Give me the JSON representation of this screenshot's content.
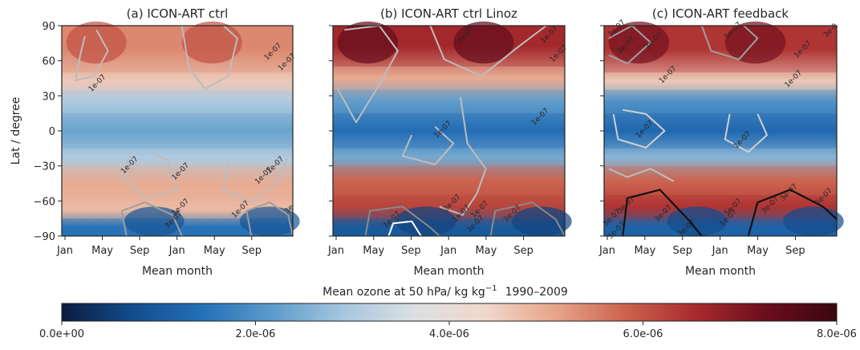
{
  "figure": {
    "colorbar": {
      "label": "Mean ozone at 50 hPa/ kg kg",
      "label_exponent": "−1",
      "label_period": "1990–2009",
      "ticks": [
        "0.0e+00",
        "2.0e-06",
        "4.0e-06",
        "6.0e-06",
        "8.0e-06"
      ],
      "range": [
        0.0,
        8e-06
      ],
      "colormap": [
        "#0b1b3f",
        "#134c8c",
        "#2470b8",
        "#5e9ccb",
        "#a7c7de",
        "#dcdfe3",
        "#f0d9cc",
        "#e7a58a",
        "#cc634e",
        "#a82a2d",
        "#6b0d1c",
        "#3a0610"
      ]
    }
  },
  "chart_data": [
    {
      "type": "heatmap",
      "title": "(a) ICON-ART ctrl",
      "xlabel": "Mean month",
      "ylabel": "Lat / degree",
      "x_ticks": [
        "Jan",
        "May",
        "Sep",
        "Jan",
        "May",
        "Sep"
      ],
      "y_ticks": [
        "90",
        "60",
        "30",
        "0",
        "−30",
        "−60",
        "−90"
      ],
      "ylim": [
        -90,
        90
      ],
      "bands": [
        {
          "lat_from": 90,
          "lat_to": 50,
          "value": 5.4e-06
        },
        {
          "lat_from": 50,
          "lat_to": 35,
          "value": 4.6e-06
        },
        {
          "lat_from": 35,
          "lat_to": 15,
          "value": 3e-06
        },
        {
          "lat_from": 15,
          "lat_to": -15,
          "value": 2.3e-06
        },
        {
          "lat_from": -15,
          "lat_to": -30,
          "value": 3e-06
        },
        {
          "lat_from": -30,
          "lat_to": -60,
          "value": 5e-06
        },
        {
          "lat_from": -60,
          "lat_to": -75,
          "value": 4.8e-06
        },
        {
          "lat_from": -75,
          "lat_to": -90,
          "value": 1.5e-06
        }
      ],
      "contour_labels": [
        "1e-07",
        "1e-07",
        "1e-07",
        "1e-07",
        "1e-07",
        "1e-07",
        "1e-07",
        "1e-07",
        "3e-07",
        "1e-07",
        "3e"
      ]
    },
    {
      "type": "heatmap",
      "title": "(b) ICON-ART ctrl Linoz",
      "xlabel": "Mean month",
      "ylabel": "",
      "x_ticks": [
        "Jan",
        "May",
        "Sep",
        "Jan",
        "May",
        "Sep"
      ],
      "y_ticks": [],
      "ylim": [
        -90,
        90
      ],
      "bands": [
        {
          "lat_from": 90,
          "lat_to": 55,
          "value": 6.6e-06
        },
        {
          "lat_from": 55,
          "lat_to": 35,
          "value": 5e-06
        },
        {
          "lat_from": 35,
          "lat_to": 15,
          "value": 2.2e-06
        },
        {
          "lat_from": 15,
          "lat_to": -15,
          "value": 1.4e-06
        },
        {
          "lat_from": -15,
          "lat_to": -30,
          "value": 2.4e-06
        },
        {
          "lat_from": -30,
          "lat_to": -55,
          "value": 5.8e-06
        },
        {
          "lat_from": -55,
          "lat_to": -75,
          "value": 6.2e-06
        },
        {
          "lat_from": -75,
          "lat_to": -90,
          "value": 1e-06
        }
      ],
      "contour_labels": [
        "3e-07",
        "1e-07",
        "1e-07",
        "1e-07",
        "1e-07",
        "3e-07",
        "1e-07",
        "3e-07",
        "3e-07",
        "1e-07",
        "3e-07"
      ]
    },
    {
      "type": "heatmap",
      "title": "(c) ICON-ART feedback",
      "xlabel": "Mean month",
      "ylabel": "",
      "x_ticks": [
        "Jan",
        "May",
        "Sep",
        "Jan",
        "May",
        "Sep"
      ],
      "y_ticks": [],
      "ylim": [
        -90,
        90
      ],
      "bands": [
        {
          "lat_from": 90,
          "lat_to": 50,
          "value": 6.4e-06
        },
        {
          "lat_from": 50,
          "lat_to": 35,
          "value": 4.6e-06
        },
        {
          "lat_from": 35,
          "lat_to": 15,
          "value": 2e-06
        },
        {
          "lat_from": 15,
          "lat_to": -15,
          "value": 1.3e-06
        },
        {
          "lat_from": -15,
          "lat_to": -30,
          "value": 2.6e-06
        },
        {
          "lat_from": -30,
          "lat_to": -55,
          "value": 5.8e-06
        },
        {
          "lat_from": -55,
          "lat_to": -75,
          "value": 6.4e-06
        },
        {
          "lat_from": -75,
          "lat_to": -90,
          "value": 1.2e-06
        }
      ],
      "contour_labels": [
        "3e-07",
        "3e-07",
        "5e-07",
        "3e-07",
        "3e-0",
        "1e-07",
        "1e-07",
        "1e-07",
        "1e-07",
        "1e-07",
        "3e-07",
        "5e-07",
        "3e-07",
        "1e-07",
        "3e-07",
        "5e-07",
        "3e-07",
        "3e-07",
        "5e-07",
        "3e-07"
      ]
    }
  ]
}
